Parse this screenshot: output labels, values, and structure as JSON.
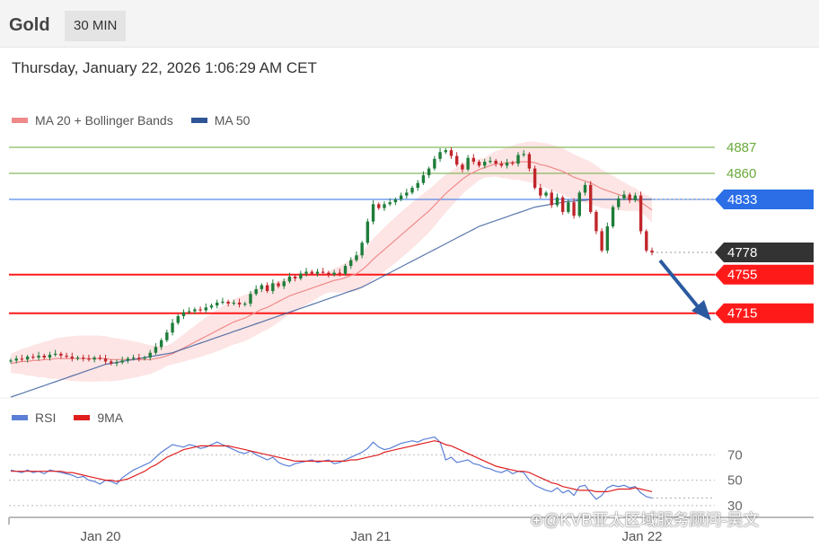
{
  "header": {
    "symbol": "Gold",
    "timeframe": "30 MIN"
  },
  "datetime": "Thursday, January 22, 2026 1:06:29 AM CET",
  "legend_main": [
    {
      "label": "MA 20 + Bollinger Bands",
      "color": "#ef8a8a"
    },
    {
      "label": "MA 50",
      "color": "#2f5597"
    }
  ],
  "legend_rsi": [
    {
      "label": "RSI",
      "color": "#5b7fd6"
    },
    {
      "label": "9MA",
      "color": "#e01e1e"
    }
  ],
  "watermark": "⊕@KVB亚太区域服务顾问-吴文",
  "colors": {
    "up": "#1e7d3a",
    "down": "#c0262b",
    "level_green": "#6aaa3a",
    "level_red": "#ff1a1a",
    "level_blue": "#2b6ee6",
    "current": "#333333",
    "arrow": "#2b5aa0",
    "bands": "#fde0e0"
  },
  "chart_data": [
    {
      "type": "candlestick",
      "title": "",
      "x_ticks": [
        "Jan 20",
        "Jan 21",
        "Jan 22"
      ],
      "ylim": [
        4630,
        4900
      ],
      "levels": [
        {
          "value": 4887,
          "label": "4887",
          "style": "green"
        },
        {
          "value": 4860,
          "label": "4860",
          "style": "green"
        },
        {
          "value": 4833,
          "label": "4833",
          "style": "blue"
        },
        {
          "value": 4778,
          "label": "4778",
          "style": "current"
        },
        {
          "value": 4755,
          "label": "4755",
          "style": "red"
        },
        {
          "value": 4715,
          "label": "4715",
          "style": "red"
        }
      ],
      "close": [
        4666,
        4668,
        4667,
        4670,
        4669,
        4671,
        4669,
        4672,
        4673,
        4671,
        4670,
        4668,
        4669,
        4668,
        4667,
        4669,
        4668,
        4665,
        4663,
        4664,
        4666,
        4668,
        4669,
        4668,
        4669,
        4674,
        4680,
        4687,
        4695,
        4705,
        4712,
        4716,
        4717,
        4719,
        4718,
        4721,
        4723,
        4726,
        4727,
        4725,
        4726,
        4724,
        4725,
        4735,
        4740,
        4744,
        4738,
        4746,
        4743,
        4748,
        4753,
        4751,
        4756,
        4758,
        4756,
        4758,
        4757,
        4755,
        4757,
        4756,
        4764,
        4770,
        4775,
        4788,
        4810,
        4828,
        4824,
        4828,
        4830,
        4833,
        4837,
        4840,
        4845,
        4850,
        4858,
        4865,
        4875,
        4882,
        4884,
        4878,
        4869,
        4864,
        4876,
        4872,
        4868,
        4872,
        4873,
        4870,
        4868,
        4871,
        4870,
        4879,
        4880,
        4865,
        4845,
        4837,
        4840,
        4827,
        4835,
        4820,
        4830,
        4816,
        4840,
        4848,
        4820,
        4800,
        4780,
        4805,
        4825,
        4834,
        4838,
        4832,
        4837,
        4800,
        4780,
        4778
      ],
      "ma20": [
        4663,
        4664,
        4665,
        4665,
        4666,
        4666,
        4667,
        4667,
        4668,
        4668,
        4668,
        4668,
        4668,
        4668,
        4668,
        4668,
        4668,
        4668,
        4667,
        4667,
        4667,
        4667,
        4667,
        4667,
        4667,
        4667,
        4668,
        4669,
        4671,
        4673,
        4676,
        4679,
        4682,
        4685,
        4688,
        4691,
        4694,
        4697,
        4700,
        4703,
        4706,
        4708,
        4710,
        4713,
        4716,
        4719,
        4721,
        4724,
        4727,
        4730,
        4733,
        4735,
        4737,
        4739,
        4741,
        4743,
        4745,
        4747,
        4749,
        4750,
        4752,
        4754,
        4756,
        4760,
        4765,
        4771,
        4776,
        4781,
        4786,
        4791,
        4796,
        4801,
        4806,
        4811,
        4816,
        4821,
        4827,
        4833,
        4839,
        4844,
        4849,
        4854,
        4858,
        4861,
        4864,
        4866,
        4868,
        4870,
        4870,
        4871,
        4871,
        4872,
        4872,
        4872,
        4871,
        4869,
        4868,
        4866,
        4864,
        4862,
        4859,
        4856,
        4854,
        4852,
        4850,
        4847,
        4844,
        4842,
        4840,
        4838,
        4836,
        4834,
        4833,
        4830,
        4826,
        4822
      ],
      "ma50": [
        4628,
        4630,
        4632,
        4634,
        4636,
        4638,
        4640,
        4642,
        4644,
        4646,
        4648,
        4650,
        4652,
        4654,
        4656,
        4658,
        4660,
        4662,
        4663,
        4664,
        4665,
        4666,
        4667,
        4668,
        4669,
        4670,
        4671,
        4672,
        4673,
        4674,
        4676,
        4678,
        4680,
        4682,
        4684,
        4686,
        4688,
        4690,
        4692,
        4694,
        4696,
        4698,
        4700,
        4702,
        4704,
        4706,
        4708,
        4710,
        4712,
        4714,
        4716,
        4718,
        4720,
        4722,
        4724,
        4726,
        4728,
        4730,
        4732,
        4734,
        4736,
        4738,
        4740,
        4742,
        4745,
        4748,
        4751,
        4754,
        4757,
        4760,
        4763,
        4766,
        4769,
        4772,
        4775,
        4778,
        4781,
        4784,
        4787,
        4790,
        4793,
        4796,
        4799,
        4802,
        4805,
        4807,
        4809,
        4811,
        4813,
        4815,
        4817,
        4819,
        4821,
        4823,
        4825,
        4826,
        4827,
        4828,
        4829,
        4830,
        4831,
        4831,
        4832,
        4832,
        4833,
        4833,
        4833,
        4833,
        4833,
        4833,
        4833,
        4833,
        4833,
        4833,
        4833,
        4833
      ]
    },
    {
      "type": "line",
      "title": "",
      "yticks": [
        70,
        50,
        30
      ],
      "ylim": [
        25,
        90
      ],
      "series": [
        {
          "name": "RSI",
          "values": [
            58,
            57,
            56,
            58,
            56,
            57,
            55,
            58,
            57,
            56,
            55,
            54,
            52,
            53,
            50,
            49,
            47,
            50,
            49,
            47,
            52,
            55,
            58,
            60,
            62,
            64,
            68,
            72,
            75,
            78,
            77,
            76,
            78,
            77,
            75,
            76,
            78,
            80,
            78,
            76,
            74,
            72,
            71,
            73,
            70,
            68,
            66,
            68,
            64,
            62,
            61,
            63,
            64,
            65,
            66,
            64,
            65,
            66,
            63,
            64,
            66,
            68,
            70,
            72,
            75,
            80,
            76,
            74,
            75,
            77,
            79,
            80,
            81,
            80,
            82,
            83,
            84,
            80,
            66,
            68,
            64,
            65,
            66,
            63,
            62,
            60,
            59,
            57,
            56,
            58,
            55,
            57,
            56,
            50,
            46,
            44,
            42,
            41,
            44,
            40,
            42,
            38,
            45,
            46,
            40,
            35,
            38,
            44,
            46,
            45,
            46,
            44,
            45,
            40,
            37,
            36
          ]
        },
        {
          "name": "9MA",
          "values": [
            57,
            57,
            57,
            57,
            57,
            57,
            57,
            57,
            57,
            57,
            56,
            56,
            55,
            54,
            53,
            52,
            51,
            50,
            50,
            49,
            50,
            51,
            53,
            55,
            57,
            60,
            62,
            65,
            68,
            70,
            72,
            74,
            75,
            76,
            77,
            77,
            77,
            77,
            77,
            77,
            76,
            75,
            74,
            73,
            72,
            71,
            70,
            69,
            68,
            67,
            66,
            65,
            65,
            65,
            65,
            65,
            65,
            65,
            65,
            65,
            65,
            66,
            66,
            67,
            68,
            69,
            70,
            72,
            73,
            74,
            75,
            76,
            77,
            78,
            79,
            80,
            81,
            80,
            78,
            77,
            75,
            73,
            71,
            69,
            67,
            65,
            63,
            61,
            60,
            59,
            58,
            57,
            57,
            56,
            54,
            52,
            50,
            48,
            47,
            45,
            44,
            43,
            42,
            42,
            42,
            41,
            41,
            41,
            42,
            43,
            43,
            43,
            44,
            43,
            42,
            41
          ]
        }
      ]
    }
  ]
}
